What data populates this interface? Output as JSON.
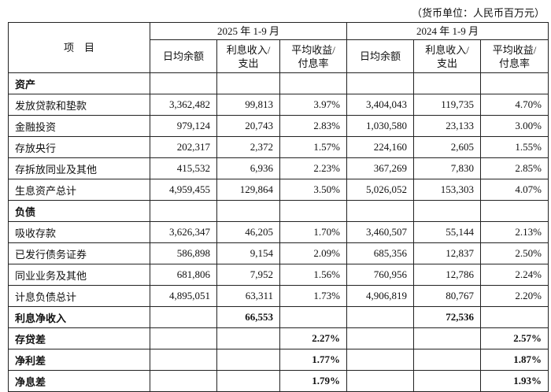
{
  "unit": "（货币单位：人民币百万元）",
  "table": {
    "item_header": "项　目",
    "periods": [
      "2025 年 1-9 月",
      "2024 年 1-9 月"
    ],
    "columns": [
      [
        "日均余额"
      ],
      [
        "利息收入/",
        "支出"
      ],
      [
        "平均收益/",
        "付息率"
      ]
    ],
    "rows": [
      [
        "资产",
        null,
        null,
        null,
        null,
        null,
        null
      ],
      [
        "发放贷款和垫款",
        "3,362,482",
        "99,813",
        "3.97%",
        "3,404,043",
        "119,735",
        "4.70%"
      ],
      [
        "金融投资",
        "979,124",
        "20,743",
        "2.83%",
        "1,030,580",
        "23,133",
        "3.00%"
      ],
      [
        "存放央行",
        "202,317",
        "2,372",
        "1.57%",
        "224,160",
        "2,605",
        "1.55%"
      ],
      [
        "存拆放同业及其他",
        "415,532",
        "6,936",
        "2.23%",
        "367,269",
        "7,830",
        "2.85%"
      ],
      [
        "生息资产总计",
        "4,959,455",
        "129,864",
        "3.50%",
        "5,026,052",
        "153,303",
        "4.07%"
      ],
      [
        "负债",
        null,
        null,
        null,
        null,
        null,
        null
      ],
      [
        "吸收存款",
        "3,626,347",
        "46,205",
        "1.70%",
        "3,460,507",
        "55,144",
        "2.13%"
      ],
      [
        "已发行债务证券",
        "586,898",
        "9,154",
        "2.09%",
        "685,356",
        "12,837",
        "2.50%"
      ],
      [
        "同业业务及其他",
        "681,806",
        "7,952",
        "1.56%",
        "760,956",
        "12,786",
        "2.24%"
      ],
      [
        "计息负债总计",
        "4,895,051",
        "63,311",
        "1.73%",
        "4,906,819",
        "80,767",
        "2.20%"
      ],
      [
        "利息净收入",
        null,
        "66,553",
        null,
        null,
        "72,536",
        null
      ],
      [
        "存贷差",
        null,
        null,
        "2.27%",
        null,
        null,
        "2.57%"
      ],
      [
        "净利差",
        null,
        null,
        "1.77%",
        null,
        null,
        "1.87%"
      ],
      [
        "净息差",
        null,
        null,
        "1.79%",
        null,
        null,
        "1.93%"
      ]
    ]
  }
}
